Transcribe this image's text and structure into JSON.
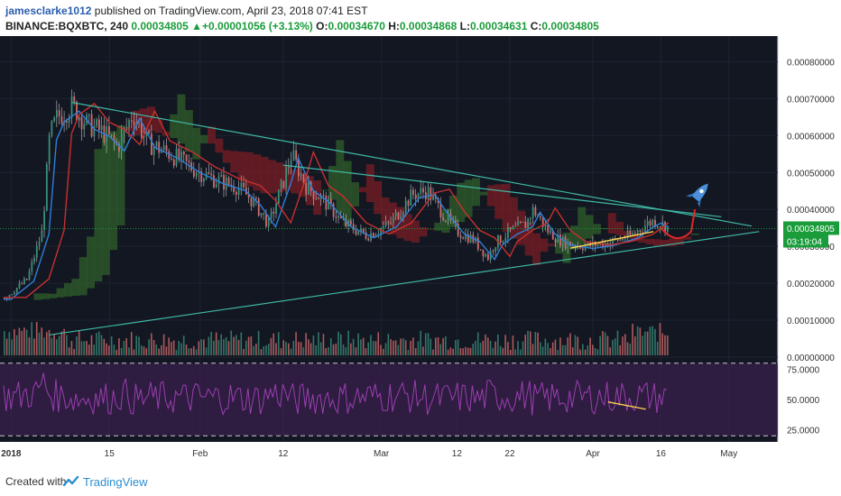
{
  "header": {
    "author": "jamesclarke1012",
    "published_text": "published on TradingView.com, April 23, 2018 07:41 EST",
    "symbol": "BINANCE:BQXBTC, 240",
    "last": "0.00034805",
    "change_arrow": "▲",
    "change": "+0.00001056 (+3.13%)",
    "o_label": "O:",
    "o_value": "0.00034670",
    "h_label": "H:",
    "h_value": "0.00034868",
    "l_label": "L:",
    "l_value": "0.00034631",
    "c_label": "C:",
    "c_value": "0.00034805"
  },
  "footer": {
    "created_with": "Created with",
    "brand": "TradingView"
  },
  "colors": {
    "background": "#131722",
    "candle_up": "#3a8f7a",
    "candle_down": "#d36b6b",
    "trendline": "#3fb8a4",
    "kumo_green": "#2f5f2a",
    "kumo_red": "#7a1e24",
    "tenkan": "#2f7fd8",
    "kijun": "#c7302f",
    "rsi_line": "#9a3fb0",
    "rsi_band": "#3c1f4f",
    "price_label": "#1a9c3a"
  },
  "chart_data": [
    {
      "type": "candlestick",
      "name": "price",
      "x_ticks": [
        "2018",
        "15",
        "Feb",
        "12",
        "Mar",
        "12",
        "22",
        "Apr",
        "16",
        "May"
      ],
      "y_ticks": [
        "0.00080000",
        "0.00070000",
        "0.00060000",
        "0.00050000",
        "0.00040000",
        "0.00034805",
        "0.00030000",
        "0.00020000",
        "0.00010000",
        "0.00000000"
      ],
      "ylim": [
        0,
        0.00085
      ],
      "last_price": 0.00034805,
      "countdown": "03:19:04",
      "path": [
        [
          0,
          0.00016
        ],
        [
          3,
          0.00021
        ],
        [
          5,
          0.00034
        ],
        [
          6,
          0.0006
        ],
        [
          7,
          0.00065
        ],
        [
          9,
          0.00068
        ],
        [
          11,
          0.00063
        ],
        [
          13,
          0.00061
        ],
        [
          15,
          0.00057
        ],
        [
          17,
          0.00066
        ],
        [
          19,
          0.00058
        ],
        [
          22,
          0.00055
        ],
        [
          25,
          0.00051
        ],
        [
          28,
          0.00048
        ],
        [
          31,
          0.00046
        ],
        [
          33,
          0.00042
        ],
        [
          35,
          0.00036
        ],
        [
          37,
          0.00048
        ],
        [
          38,
          0.00055
        ],
        [
          40,
          0.00046
        ],
        [
          42,
          0.00043
        ],
        [
          45,
          0.00036
        ],
        [
          48,
          0.00033
        ],
        [
          51,
          0.00036
        ],
        [
          54,
          0.00044
        ],
        [
          56,
          0.00045
        ],
        [
          58,
          0.00039
        ],
        [
          60,
          0.00034
        ],
        [
          62,
          0.00032
        ],
        [
          64,
          0.00027
        ],
        [
          65,
          0.00031
        ],
        [
          67,
          0.00034
        ],
        [
          69,
          0.00036
        ],
        [
          70,
          0.0004
        ],
        [
          72,
          0.00034
        ],
        [
          74,
          0.00031
        ],
        [
          77,
          0.0003
        ],
        [
          80,
          0.00031
        ],
        [
          83,
          0.00033
        ],
        [
          85,
          0.00036
        ],
        [
          86,
          0.00037
        ],
        [
          88,
          0.00035
        ]
      ]
    },
    {
      "type": "bar",
      "name": "volume",
      "seed": 7
    },
    {
      "type": "line",
      "name": "rsi",
      "y_ticks": [
        "75.0000",
        "50.0000",
        "25.0000"
      ],
      "ylim": [
        15,
        85
      ],
      "bands": [
        80,
        20
      ]
    }
  ]
}
